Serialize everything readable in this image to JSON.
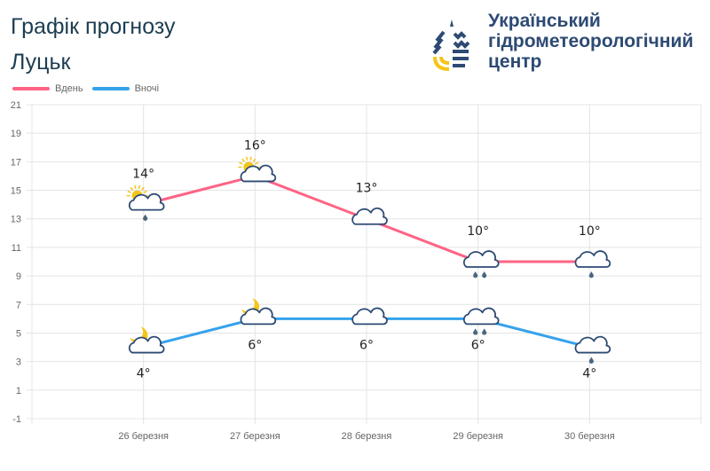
{
  "header": {
    "title": "Графік прогнозу",
    "city": "Луцьк",
    "org_line1": "Український",
    "org_line2": "гідрометеорологічний",
    "org_line3": "центр"
  },
  "colors": {
    "day": "#ff6384",
    "night": "#36a2eb",
    "title": "#1d3d52",
    "org": "#2d4a73",
    "sun": "#f5c518"
  },
  "chart_data": {
    "type": "line",
    "categories": [
      "26 березня",
      "27 березня",
      "28 березня",
      "29 березня",
      "30 березня"
    ],
    "series": [
      {
        "name": "Вдень",
        "values": [
          14,
          16,
          13,
          10,
          10
        ],
        "labels": [
          "14°",
          "16°",
          "13°",
          "10°",
          "10°"
        ],
        "icons": [
          "partly-cloudy-light-rain",
          "partly-cloudy",
          "cloudy",
          "cloudy-rain",
          "cloudy-light-rain"
        ]
      },
      {
        "name": "Вночі",
        "values": [
          4,
          6,
          6,
          6,
          4
        ],
        "labels": [
          "4°",
          "6°",
          "6°",
          "6°",
          "4°"
        ],
        "icons": [
          "moon-cloudy",
          "moon-cloudy",
          "cloudy",
          "cloudy-rain",
          "cloudy-light-rain"
        ]
      }
    ],
    "yticks": [
      21,
      19,
      17,
      15,
      13,
      11,
      9,
      7,
      5,
      3,
      1,
      -1
    ],
    "ylim": [
      -1,
      21
    ],
    "grid": true,
    "legend": "top-left"
  }
}
